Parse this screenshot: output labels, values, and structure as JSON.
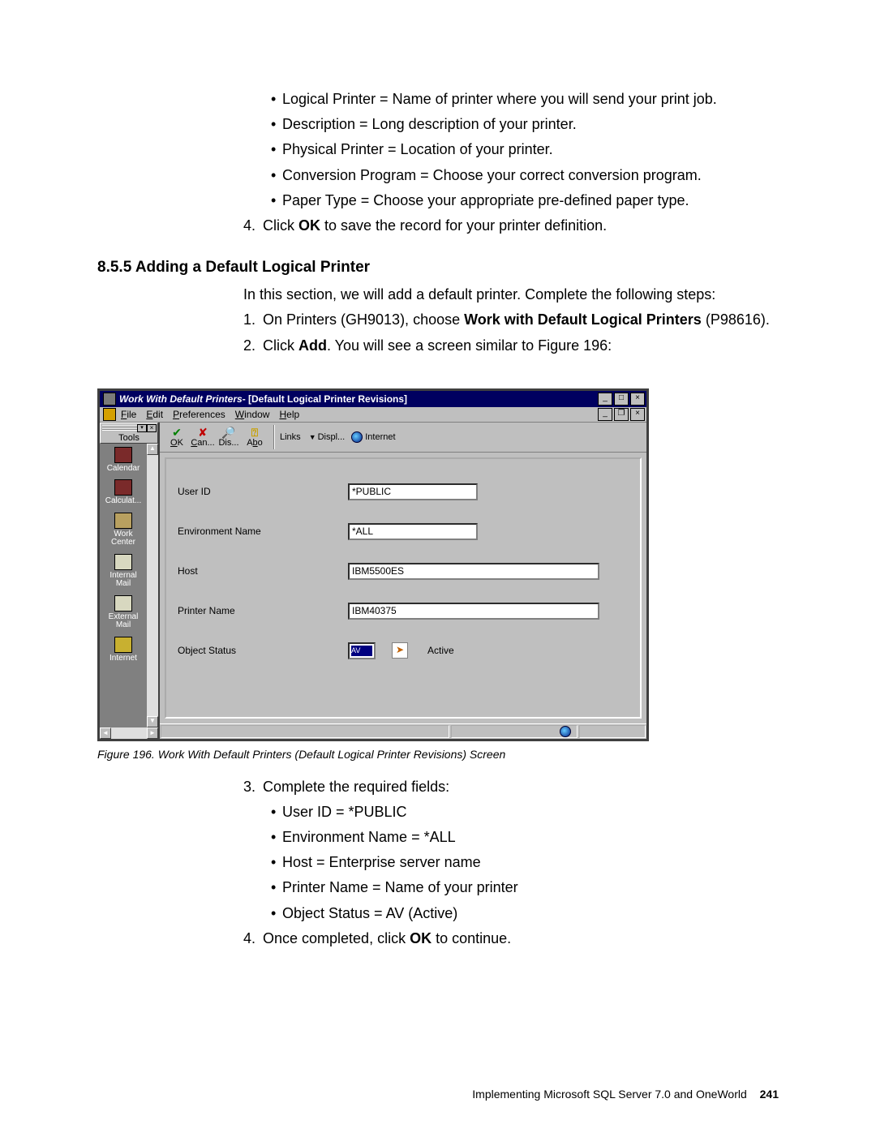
{
  "text": {
    "b1": "Logical Printer = Name of printer where you will send your print job.",
    "b2": "Description = Long description of your printer.",
    "b3": "Physical Printer = Location of your printer.",
    "b4": "Conversion Program = Choose your correct conversion program.",
    "b5": "Paper Type = Choose your appropriate pre-defined paper type.",
    "s4a": "Click ",
    "s4b": "OK",
    "s4c": " to save the record for your printer definition.",
    "section": "8.5.5  Adding a Default Logical Printer",
    "intro": "In this section, we will add a default printer. Complete the following steps:",
    "p1a": "On Printers (GH9013), choose ",
    "p1b": "Work with Default Logical Printers",
    "p1c": " (P98616).",
    "p2a": "Click ",
    "p2b": "Add",
    "p2c": ". You will see a screen similar to Figure 196:",
    "fig": "Figure 196.  Work With Default Printers (Default Logical Printer Revisions) Screen",
    "a3": "Complete the required fields:",
    "a3b1": "User ID = *PUBLIC",
    "a3b2": "Environment Name = *ALL",
    "a3b3": "Host = Enterprise server name",
    "a3b4": "Printer Name = Name of your printer",
    "a3b5": "Object Status = AV (Active)",
    "a4a": "Once completed, click ",
    "a4b": "OK",
    "a4c": " to continue."
  },
  "num": {
    "n4": "4.",
    "n1": "1.",
    "n2": "2.",
    "n3": "3."
  },
  "window": {
    "title1": "Work With Default Printers ",
    "title2": " - [Default Logical Printer Revisions]",
    "menu": {
      "file": "File",
      "edit": "Edit",
      "pref": "Preferences",
      "win": "Window",
      "help": "Help"
    },
    "toolbar": {
      "ok": "OK",
      "can": "Can...",
      "dis": "Dis...",
      "abo": "Abo",
      "links": "Links",
      "displ": "Displ...",
      "internet": "Internet"
    },
    "sidebar": {
      "tools": "Tools",
      "items": [
        {
          "label": "Calendar",
          "color": "#7a2a2a"
        },
        {
          "label": "Calculat...",
          "color": "#7a2a2a"
        },
        {
          "label": "Work\nCenter",
          "color": "#b8a060"
        },
        {
          "label": "Internal\nMail",
          "color": "#d8d8c0"
        },
        {
          "label": "External\nMail",
          "color": "#d8d8c0"
        },
        {
          "label": "Internet",
          "color": "#c8b030"
        }
      ]
    },
    "form": {
      "l_userid": "User ID",
      "v_userid": "*PUBLIC",
      "l_env": "Environment Name",
      "v_env": "*ALL",
      "l_host": "Host",
      "v_host": "IBM5500ES",
      "l_prn": "Printer Name",
      "v_prn": "IBM40375",
      "l_stat": "Object Status",
      "v_stat": "AV",
      "v_stat_txt": "Active"
    }
  },
  "footer": {
    "text": "Implementing Microsoft SQL Server 7.0 and OneWorld",
    "page": "241"
  },
  "style": {
    "page_bg": "#ffffff",
    "text_color": "#000000",
    "win_titlebar": "#000060",
    "win_gray": "#bfbfbf",
    "sidebar_bg": "#808080"
  }
}
